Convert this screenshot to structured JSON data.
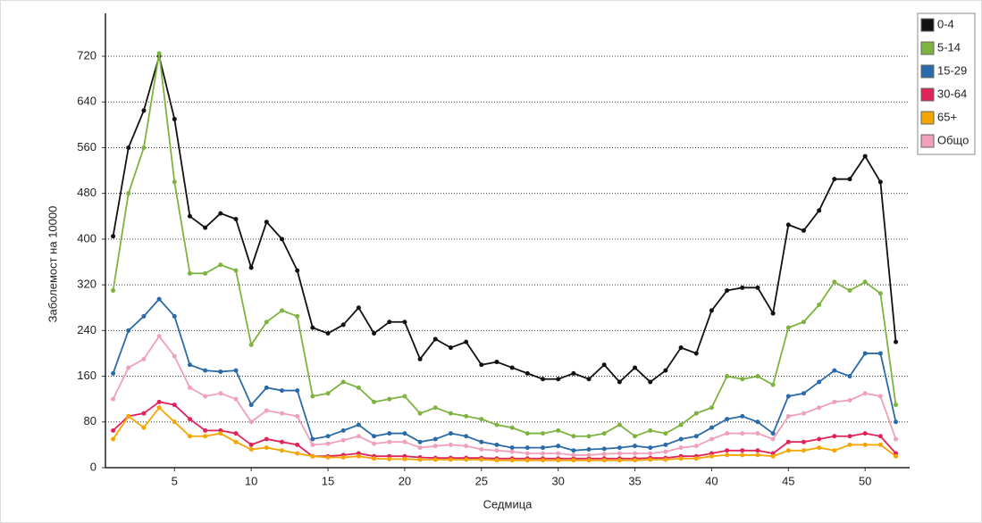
{
  "chart_data": {
    "type": "line",
    "xlabel": "Седмица",
    "ylabel": "Заболемост на 10000",
    "x": [
      1,
      2,
      3,
      4,
      5,
      6,
      7,
      8,
      9,
      10,
      11,
      12,
      13,
      14,
      15,
      16,
      17,
      18,
      19,
      20,
      21,
      22,
      23,
      24,
      25,
      26,
      27,
      28,
      29,
      30,
      31,
      32,
      33,
      34,
      35,
      36,
      37,
      38,
      39,
      40,
      41,
      42,
      43,
      44,
      45,
      46,
      47,
      48,
      49,
      50,
      51,
      52
    ],
    "xlim": [
      0.5,
      52.9
    ],
    "xticks": [
      5,
      10,
      15,
      20,
      25,
      30,
      35,
      40,
      45,
      50
    ],
    "ylim": [
      0,
      795
    ],
    "yticks": [
      0,
      80,
      160,
      240,
      320,
      400,
      480,
      560,
      640,
      720
    ],
    "grid": true,
    "legend": "upper right",
    "series": [
      {
        "name": "0-4",
        "color": "#111111",
        "values": [
          405,
          560,
          625,
          720,
          610,
          440,
          420,
          445,
          435,
          350,
          430,
          400,
          345,
          245,
          235,
          250,
          280,
          235,
          255,
          255,
          190,
          225,
          210,
          220,
          180,
          185,
          175,
          165,
          155,
          155,
          165,
          155,
          180,
          150,
          175,
          150,
          170,
          210,
          200,
          275,
          310,
          315,
          315,
          270,
          425,
          415,
          450,
          505,
          505,
          545,
          500,
          220
        ]
      },
      {
        "name": "5-14",
        "color": "#7db33e",
        "values": [
          310,
          480,
          560,
          725,
          500,
          340,
          340,
          355,
          345,
          215,
          255,
          275,
          265,
          125,
          130,
          150,
          140,
          115,
          120,
          125,
          95,
          105,
          95,
          90,
          85,
          75,
          70,
          60,
          60,
          65,
          55,
          55,
          60,
          75,
          55,
          65,
          60,
          75,
          95,
          105,
          160,
          155,
          160,
          145,
          245,
          255,
          285,
          325,
          310,
          325,
          305,
          110
        ]
      },
      {
        "name": "15-29",
        "color": "#2a6aa8",
        "values": [
          165,
          240,
          265,
          295,
          265,
          180,
          170,
          168,
          170,
          110,
          140,
          135,
          135,
          50,
          55,
          65,
          75,
          55,
          60,
          60,
          45,
          50,
          60,
          55,
          45,
          40,
          35,
          35,
          35,
          38,
          30,
          32,
          33,
          35,
          38,
          35,
          40,
          50,
          55,
          70,
          85,
          90,
          80,
          60,
          125,
          130,
          150,
          170,
          160,
          200,
          200,
          80
        ]
      },
      {
        "name": "30-64",
        "color": "#e0245a",
        "values": [
          65,
          90,
          95,
          115,
          110,
          85,
          65,
          65,
          60,
          40,
          50,
          45,
          40,
          20,
          20,
          22,
          25,
          20,
          20,
          20,
          18,
          17,
          17,
          17,
          17,
          16,
          16,
          16,
          16,
          16,
          16,
          16,
          16,
          16,
          16,
          17,
          17,
          20,
          20,
          25,
          30,
          30,
          30,
          25,
          45,
          45,
          50,
          55,
          55,
          60,
          55,
          25
        ]
      },
      {
        "name": "65+",
        "color": "#f5a500",
        "values": [
          50,
          90,
          70,
          105,
          80,
          55,
          55,
          60,
          45,
          32,
          35,
          30,
          25,
          20,
          18,
          18,
          20,
          16,
          15,
          15,
          14,
          14,
          14,
          14,
          14,
          13,
          13,
          13,
          13,
          13,
          13,
          13,
          13,
          13,
          13,
          14,
          14,
          16,
          16,
          20,
          22,
          22,
          22,
          20,
          30,
          30,
          35,
          30,
          40,
          40,
          40,
          20
        ]
      },
      {
        "name": "Общо",
        "color": "#f0a0b8",
        "values": [
          120,
          175,
          190,
          230,
          195,
          140,
          125,
          130,
          120,
          80,
          100,
          95,
          90,
          40,
          42,
          48,
          55,
          42,
          45,
          45,
          35,
          38,
          40,
          38,
          32,
          30,
          28,
          25,
          25,
          25,
          22,
          22,
          24,
          25,
          25,
          25,
          28,
          35,
          38,
          50,
          60,
          60,
          60,
          50,
          90,
          95,
          105,
          115,
          118,
          130,
          125,
          50
        ]
      }
    ]
  }
}
